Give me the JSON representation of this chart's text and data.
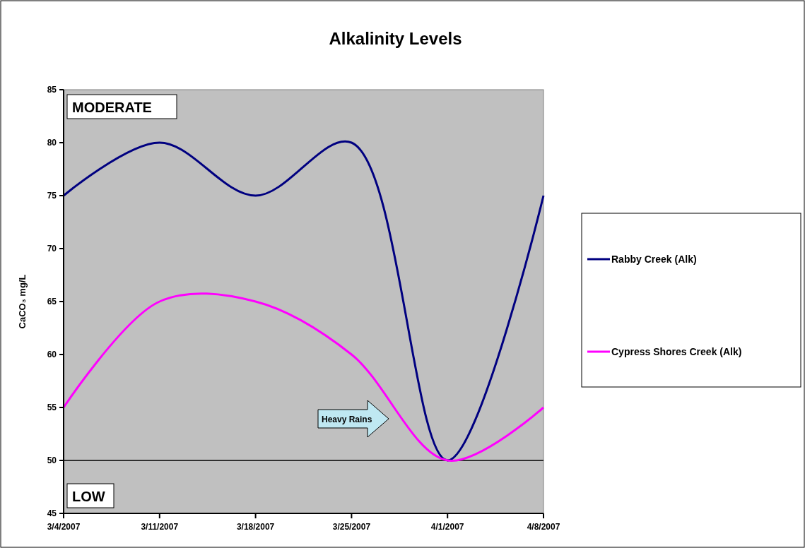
{
  "chart_data": {
    "type": "line",
    "title": "Alkalinity Levels",
    "ylabel": "CaCO₃ mg/L",
    "x": [
      "2007-03-04",
      "2007-03-11",
      "2007-03-18",
      "2007-03-25",
      "2007-04-01",
      "2007-04-08"
    ],
    "series": [
      {
        "name": "Rabby Creek (Alk)",
        "color": "#000080",
        "values": [
          75,
          80,
          75,
          80,
          50,
          75
        ]
      },
      {
        "name": "Cypress Shores Creek (Alk)",
        "color": "#ff00ff",
        "values": [
          55,
          65,
          65,
          60,
          50,
          55
        ]
      }
    ],
    "xlim": [
      "2007-03-04",
      "2007-04-08"
    ],
    "xticks": [
      {
        "value": "2007-03-04",
        "label": "3/4/2007"
      },
      {
        "value": "2007-03-11",
        "label": "3/11/2007"
      },
      {
        "value": "2007-03-18",
        "label": "3/18/2007"
      },
      {
        "value": "2007-03-25",
        "label": "3/25/2007"
      },
      {
        "value": "2007-04-01",
        "label": "4/1/2007"
      },
      {
        "value": "2007-04-08",
        "label": "4/8/2007"
      }
    ],
    "ylim": [
      45,
      85
    ],
    "yticks": [
      45,
      50,
      55,
      60,
      65,
      70,
      75,
      80,
      85
    ],
    "ref_lines": [
      {
        "axis": "y",
        "value": 50,
        "color": "#000000"
      }
    ],
    "annotations": [
      "MODERATE",
      "LOW",
      "Heavy Rains"
    ],
    "grid": false,
    "legend": "right",
    "marker": "none",
    "line_style": "solid"
  }
}
